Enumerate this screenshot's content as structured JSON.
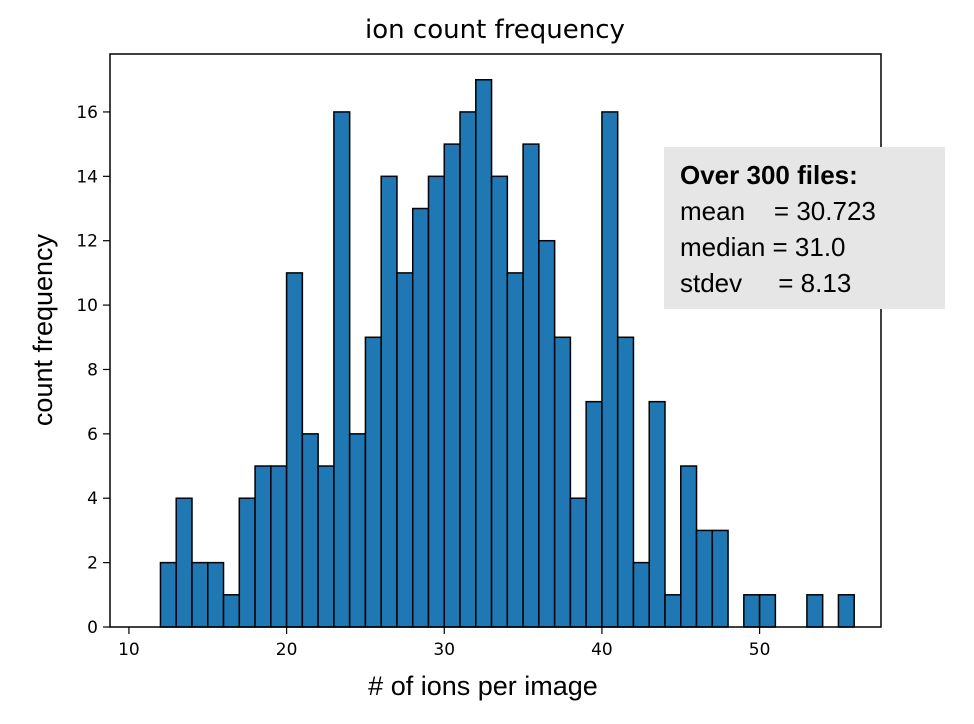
{
  "chart_data": {
    "type": "bar",
    "title": "ion count frequency",
    "xlabel": "# of ions per image",
    "ylabel": "count frequency",
    "xlim": [
      8.8,
      57.7
    ],
    "ylim": [
      0,
      17.8
    ],
    "xticks": [
      10,
      20,
      30,
      40,
      50
    ],
    "yticks": [
      0,
      2,
      4,
      6,
      8,
      10,
      12,
      14,
      16
    ],
    "bin_width": 1,
    "bins": [
      {
        "x": 12,
        "value": 2
      },
      {
        "x": 13,
        "value": 4
      },
      {
        "x": 14,
        "value": 2
      },
      {
        "x": 15,
        "value": 2
      },
      {
        "x": 16,
        "value": 1
      },
      {
        "x": 17,
        "value": 4
      },
      {
        "x": 18,
        "value": 5
      },
      {
        "x": 19,
        "value": 5
      },
      {
        "x": 20,
        "value": 11
      },
      {
        "x": 21,
        "value": 6
      },
      {
        "x": 22,
        "value": 5
      },
      {
        "x": 23,
        "value": 16
      },
      {
        "x": 24,
        "value": 6
      },
      {
        "x": 25,
        "value": 9
      },
      {
        "x": 26,
        "value": 14
      },
      {
        "x": 27,
        "value": 11
      },
      {
        "x": 28,
        "value": 13
      },
      {
        "x": 29,
        "value": 14
      },
      {
        "x": 30,
        "value": 15
      },
      {
        "x": 31,
        "value": 16
      },
      {
        "x": 32,
        "value": 17
      },
      {
        "x": 33,
        "value": 14
      },
      {
        "x": 34,
        "value": 11
      },
      {
        "x": 35,
        "value": 15
      },
      {
        "x": 36,
        "value": 12
      },
      {
        "x": 37,
        "value": 9
      },
      {
        "x": 38,
        "value": 4
      },
      {
        "x": 39,
        "value": 7
      },
      {
        "x": 40,
        "value": 16
      },
      {
        "x": 41,
        "value": 9
      },
      {
        "x": 42,
        "value": 2
      },
      {
        "x": 43,
        "value": 7
      },
      {
        "x": 44,
        "value": 1
      },
      {
        "x": 45,
        "value": 5
      },
      {
        "x": 46,
        "value": 3
      },
      {
        "x": 47,
        "value": 3
      },
      {
        "x": 48,
        "value": 0
      },
      {
        "x": 49,
        "value": 1
      },
      {
        "x": 50,
        "value": 1
      },
      {
        "x": 51,
        "value": 0
      },
      {
        "x": 52,
        "value": 0
      },
      {
        "x": 53,
        "value": 1
      },
      {
        "x": 54,
        "value": 0
      },
      {
        "x": 55,
        "value": 1
      }
    ],
    "bar_color": "#1f77b4",
    "bar_edge_color": "#000000"
  },
  "stats": {
    "heading": "Over 300 files:",
    "mean": "mean    = 30.723",
    "median": "median = 31.0",
    "stdev": "stdev     = 8.13"
  }
}
